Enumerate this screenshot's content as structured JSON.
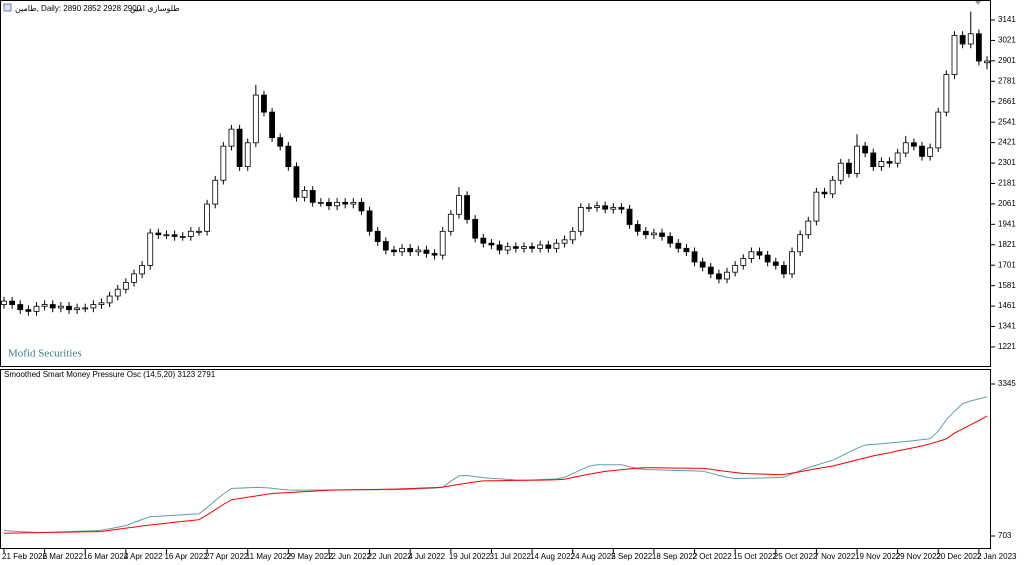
{
  "chart_data": [
    {
      "type": "candlestick",
      "title": "طامین, Daily: 2890 2852 2928 2900",
      "subtitle": "طلوسازی امین",
      "watermark": "Mofid Securities",
      "color_up": "#ffffff",
      "color_down": "#000000",
      "edge_color": "#000000",
      "categories": [
        "21 Feb 2022",
        null,
        null,
        null,
        null,
        "6 Mar 2022",
        null,
        null,
        null,
        null,
        "16 Mar 2022",
        null,
        null,
        null,
        null,
        "4 Apr 2022",
        null,
        null,
        null,
        null,
        "16 Apr 2022",
        null,
        null,
        null,
        null,
        "27 Apr 2022",
        null,
        null,
        null,
        null,
        "11 May 2022",
        null,
        null,
        null,
        null,
        "29 May 2022",
        null,
        null,
        null,
        null,
        "12 Jun 2022",
        null,
        null,
        null,
        null,
        "22 Jun 2022",
        null,
        null,
        null,
        null,
        "4 Jul 2022",
        null,
        null,
        null,
        null,
        "19 Jul 2022",
        null,
        null,
        null,
        null,
        "31 Jul 2022",
        null,
        null,
        null,
        null,
        "14 Aug 2022",
        null,
        null,
        null,
        null,
        "24 Aug 2022",
        null,
        null,
        null,
        null,
        "5 Sep 2022",
        null,
        null,
        null,
        null,
        "18 Sep 2022",
        null,
        null,
        null,
        null,
        "2 Oct 2022",
        null,
        null,
        null,
        null,
        "15 Oct 2022",
        null,
        null,
        null,
        null,
        "25 Oct 2022",
        null,
        null,
        null,
        null,
        "7 Nov 2022",
        null,
        null,
        null,
        null,
        "19 Nov 2022",
        null,
        null,
        null,
        null,
        "29 Nov 2022",
        null,
        null,
        null,
        null,
        "20 Dec 2022",
        null,
        null,
        null,
        null,
        "2 Jan 2023",
        null
      ],
      "open": [
        1470,
        1490,
        1470,
        1440,
        1430,
        1460,
        1470,
        1450,
        1460,
        1440,
        1450,
        1450,
        1470,
        1480,
        1520,
        1560,
        1600,
        1650,
        1700,
        1890,
        1880,
        1880,
        1870,
        1870,
        1900,
        1900,
        2060,
        2200,
        2400,
        2500,
        2280,
        2420,
        2700,
        2600,
        2450,
        2400,
        2280,
        2100,
        2140,
        2070,
        2070,
        2050,
        2070,
        2060,
        2070,
        2020,
        1900,
        1840,
        1790,
        1780,
        1800,
        1780,
        1790,
        1770,
        1760,
        1900,
        2000,
        2110,
        1970,
        1860,
        1830,
        1820,
        1790,
        1810,
        1800,
        1810,
        1800,
        1820,
        1800,
        1830,
        1850,
        1900,
        2040,
        2040,
        2050,
        2030,
        2040,
        2030,
        1940,
        1900,
        1880,
        1890,
        1870,
        1830,
        1800,
        1780,
        1720,
        1690,
        1650,
        1620,
        1660,
        1700,
        1740,
        1780,
        1760,
        1720,
        1700,
        1650,
        1780,
        1880,
        1960,
        2130,
        2120,
        2200,
        2300,
        2240,
        2400,
        2360,
        2280,
        2310,
        2300,
        2360,
        2420,
        2400,
        2340,
        2390,
        2600,
        2820,
        3050,
        3000,
        3060,
        2890
      ],
      "high": [
        1515,
        1515,
        1495,
        1465,
        1485,
        1495,
        1495,
        1485,
        1485,
        1475,
        1475,
        1495,
        1505,
        1545,
        1585,
        1625,
        1675,
        1725,
        1915,
        1915,
        1905,
        1905,
        1895,
        1925,
        1925,
        2085,
        2225,
        2425,
        2525,
        2525,
        2445,
        2760,
        2725,
        2625,
        2475,
        2425,
        2305,
        2165,
        2165,
        2095,
        2095,
        2095,
        2095,
        2095,
        2095,
        2045,
        1925,
        1865,
        1815,
        1825,
        1825,
        1815,
        1815,
        1795,
        1925,
        2025,
        2160,
        2135,
        1995,
        1885,
        1855,
        1845,
        1835,
        1835,
        1835,
        1835,
        1845,
        1845,
        1855,
        1875,
        1925,
        2065,
        2065,
        2075,
        2075,
        2065,
        2065,
        2055,
        1965,
        1925,
        1915,
        1915,
        1895,
        1855,
        1825,
        1805,
        1745,
        1715,
        1675,
        1685,
        1725,
        1765,
        1805,
        1805,
        1785,
        1745,
        1725,
        1805,
        1905,
        1985,
        2155,
        2155,
        2225,
        2325,
        2325,
        2470,
        2425,
        2385,
        2335,
        2335,
        2385,
        2460,
        2445,
        2425,
        2415,
        2625,
        2845,
        3075,
        3075,
        3190,
        3085,
        2928
      ],
      "low": [
        1445,
        1445,
        1415,
        1405,
        1405,
        1435,
        1425,
        1425,
        1415,
        1415,
        1425,
        1425,
        1445,
        1455,
        1495,
        1535,
        1575,
        1625,
        1675,
        1855,
        1855,
        1845,
        1845,
        1845,
        1875,
        1875,
        2035,
        2175,
        2375,
        2255,
        2255,
        2395,
        2575,
        2425,
        2375,
        2255,
        2075,
        2075,
        2045,
        2045,
        2025,
        2025,
        2035,
        2035,
        1995,
        1875,
        1815,
        1765,
        1755,
        1755,
        1755,
        1755,
        1745,
        1735,
        1735,
        1875,
        1975,
        1945,
        1835,
        1805,
        1795,
        1765,
        1765,
        1775,
        1775,
        1775,
        1775,
        1775,
        1775,
        1805,
        1825,
        1875,
        2015,
        2015,
        2005,
        2005,
        2005,
        1915,
        1875,
        1855,
        1855,
        1845,
        1805,
        1775,
        1755,
        1695,
        1665,
        1625,
        1595,
        1595,
        1635,
        1675,
        1715,
        1735,
        1695,
        1675,
        1625,
        1625,
        1755,
        1855,
        1935,
        2095,
        2095,
        2175,
        2215,
        2215,
        2335,
        2255,
        2255,
        2275,
        2275,
        2335,
        2375,
        2315,
        2315,
        2365,
        2575,
        2795,
        2975,
        2975,
        2875,
        2852
      ],
      "close": [
        1490,
        1470,
        1440,
        1430,
        1460,
        1470,
        1450,
        1460,
        1440,
        1450,
        1450,
        1470,
        1480,
        1520,
        1560,
        1600,
        1650,
        1700,
        1890,
        1880,
        1880,
        1870,
        1870,
        1900,
        1900,
        2060,
        2200,
        2400,
        2500,
        2280,
        2420,
        2700,
        2600,
        2450,
        2400,
        2280,
        2100,
        2140,
        2070,
        2070,
        2050,
        2070,
        2060,
        2070,
        2020,
        1900,
        1840,
        1790,
        1780,
        1800,
        1780,
        1790,
        1770,
        1760,
        1900,
        2000,
        2110,
        1970,
        1860,
        1830,
        1820,
        1790,
        1810,
        1800,
        1810,
        1800,
        1820,
        1800,
        1830,
        1850,
        1900,
        2040,
        2040,
        2050,
        2030,
        2040,
        2030,
        1940,
        1900,
        1880,
        1890,
        1870,
        1830,
        1800,
        1780,
        1720,
        1690,
        1650,
        1620,
        1660,
        1700,
        1740,
        1780,
        1760,
        1720,
        1700,
        1650,
        1780,
        1880,
        1960,
        2130,
        2120,
        2200,
        2300,
        2240,
        2400,
        2360,
        2280,
        2310,
        2300,
        2360,
        2420,
        2400,
        2340,
        2390,
        2600,
        2820,
        3050,
        3000,
        3060,
        2900,
        2900
      ],
      "ylim": [
        1115,
        3229
      ],
      "yticks": [
        1221,
        1341,
        1461,
        1581,
        1701,
        1821,
        1941,
        2061,
        2181,
        2301,
        2421,
        2541,
        2661,
        2781,
        2901,
        3021,
        3141
      ]
    },
    {
      "type": "line",
      "title": "Smoothed Smart Money Pressure Osc (14,5,20) 3123 2791",
      "series": [
        {
          "color": "#5f9ea8",
          "values": [
            796,
            788,
            780,
            772,
            764,
            763,
            769,
            774,
            779,
            785,
            790,
            795,
            803,
            829,
            855,
            886,
            938,
            989,
            1040,
            1048,
            1056,
            1064,
            1072,
            1080,
            1087,
            1197,
            1320,
            1432,
            1531,
            1536,
            1541,
            1547,
            1545,
            1532,
            1517,
            1503,
            1501,
            1501,
            1502,
            1503,
            1503,
            1504,
            1505,
            1506,
            1507,
            1508,
            1508,
            1509,
            1509,
            1511,
            1517,
            1523,
            1529,
            1535,
            1550,
            1655,
            1747,
            1755,
            1735,
            1718,
            1705,
            1697,
            1687,
            1677,
            1672,
            1676,
            1683,
            1690,
            1696,
            1724,
            1788,
            1852,
            1916,
            1940,
            1940,
            1940,
            1940,
            1908,
            1876,
            1858,
            1854,
            1850,
            1846,
            1842,
            1838,
            1834,
            1830,
            1795,
            1757,
            1722,
            1701,
            1705,
            1708,
            1711,
            1714,
            1717,
            1727,
            1783,
            1839,
            1892,
            1935,
            1977,
            2020,
            2089,
            2159,
            2228,
            2283,
            2295,
            2307,
            2319,
            2333,
            2346,
            2362,
            2378,
            2394,
            2525,
            2725,
            2872,
            3004,
            3051,
            3086,
            3123
          ]
        },
        {
          "color": "#ff0000",
          "values": [
            751,
            754,
            756,
            758,
            761,
            763,
            766,
            768,
            771,
            773,
            776,
            778,
            782,
            801,
            819,
            840,
            858,
            877,
            895,
            910,
            925,
            941,
            956,
            971,
            986,
            1069,
            1160,
            1251,
            1333,
            1355,
            1377,
            1399,
            1421,
            1441,
            1450,
            1458,
            1466,
            1474,
            1482,
            1490,
            1498,
            1502,
            1504,
            1506,
            1509,
            1511,
            1513,
            1515,
            1518,
            1521,
            1527,
            1533,
            1539,
            1545,
            1553,
            1578,
            1600,
            1622,
            1644,
            1660,
            1663,
            1665,
            1667,
            1669,
            1671,
            1673,
            1675,
            1677,
            1679,
            1691,
            1719,
            1747,
            1775,
            1803,
            1825,
            1839,
            1853,
            1869,
            1883,
            1889,
            1888,
            1887,
            1885,
            1884,
            1883,
            1881,
            1880,
            1862,
            1842,
            1824,
            1806,
            1790,
            1785,
            1781,
            1776,
            1772,
            1773,
            1797,
            1821,
            1848,
            1872,
            1896,
            1920,
            1955,
            1990,
            2025,
            2060,
            2095,
            2123,
            2151,
            2183,
            2211,
            2239,
            2267,
            2306,
            2348,
            2390,
            2491,
            2564,
            2637,
            2710,
            2791
          ]
        }
      ],
      "ylim": [
        703,
        3345
      ],
      "yticks": [
        703,
        3345
      ]
    }
  ]
}
